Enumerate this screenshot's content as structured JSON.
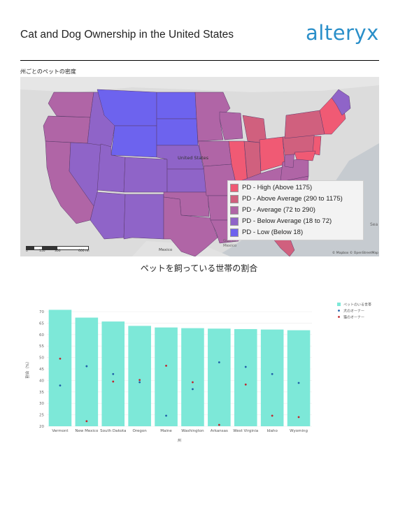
{
  "header": {
    "title": "Cat and Dog Ownership in the United States",
    "logo": "alteryx"
  },
  "map": {
    "title": "州ごとのペットの密度",
    "labels": {
      "united_states": "United States",
      "mexico": "Mexico",
      "gulf": "Gulf of Mexico",
      "sea": "Sea"
    },
    "scale": [
      "0",
      "150",
      "300",
      "600 mi"
    ],
    "attribution": "© Mapbox © OpenStreetMap",
    "legend": [
      {
        "label": "PD - High (Above 1175)",
        "color": "#f05a74"
      },
      {
        "label": "PD - Above Average (290 to 1175)",
        "color": "#d0607e"
      },
      {
        "label": "PD - Average (72 to 290)",
        "color": "#b065a6"
      },
      {
        "label": "PD - Below Average (18 to 72)",
        "color": "#8f64c8"
      },
      {
        "label": "PD - Low (Below 18)",
        "color": "#6d63ee"
      }
    ]
  },
  "chart": {
    "title": "ペットを飼っている世帯の割合"
  },
  "chart_data": {
    "type": "bar",
    "categories": [
      "Vermont",
      "New Mexico",
      "South Dakota",
      "Oregon",
      "Maine",
      "Washington",
      "Arkansas",
      "West Virginia",
      "Idaho",
      "Wyoming"
    ],
    "series": [
      {
        "name": "ペットのいる世帯",
        "type": "bar",
        "color": "#7de8d8",
        "values": [
          70.8,
          67.4,
          65.7,
          63.8,
          63.1,
          62.8,
          62.6,
          62.4,
          62.2,
          61.9
        ]
      },
      {
        "name": "犬のオーナー",
        "type": "scatter",
        "color": "#1f5fa8",
        "values": [
          37.8,
          46.2,
          42.8,
          39.2,
          24.6,
          36.2,
          47.9,
          45.9,
          42.8,
          38.9
        ]
      },
      {
        "name": "猫のオーナー",
        "type": "scatter",
        "color": "#c0262e",
        "values": [
          49.5,
          22.2,
          39.5,
          40.2,
          46.4,
          39.2,
          20.6,
          38.2,
          24.6,
          24.0
        ]
      }
    ],
    "xlabel": "州",
    "ylabel": "割合（%）",
    "ylim": [
      20,
      70
    ],
    "yticks": [
      20,
      25,
      30,
      35,
      40,
      45,
      50,
      55,
      60,
      65,
      70
    ],
    "legend_position": "top-right"
  }
}
